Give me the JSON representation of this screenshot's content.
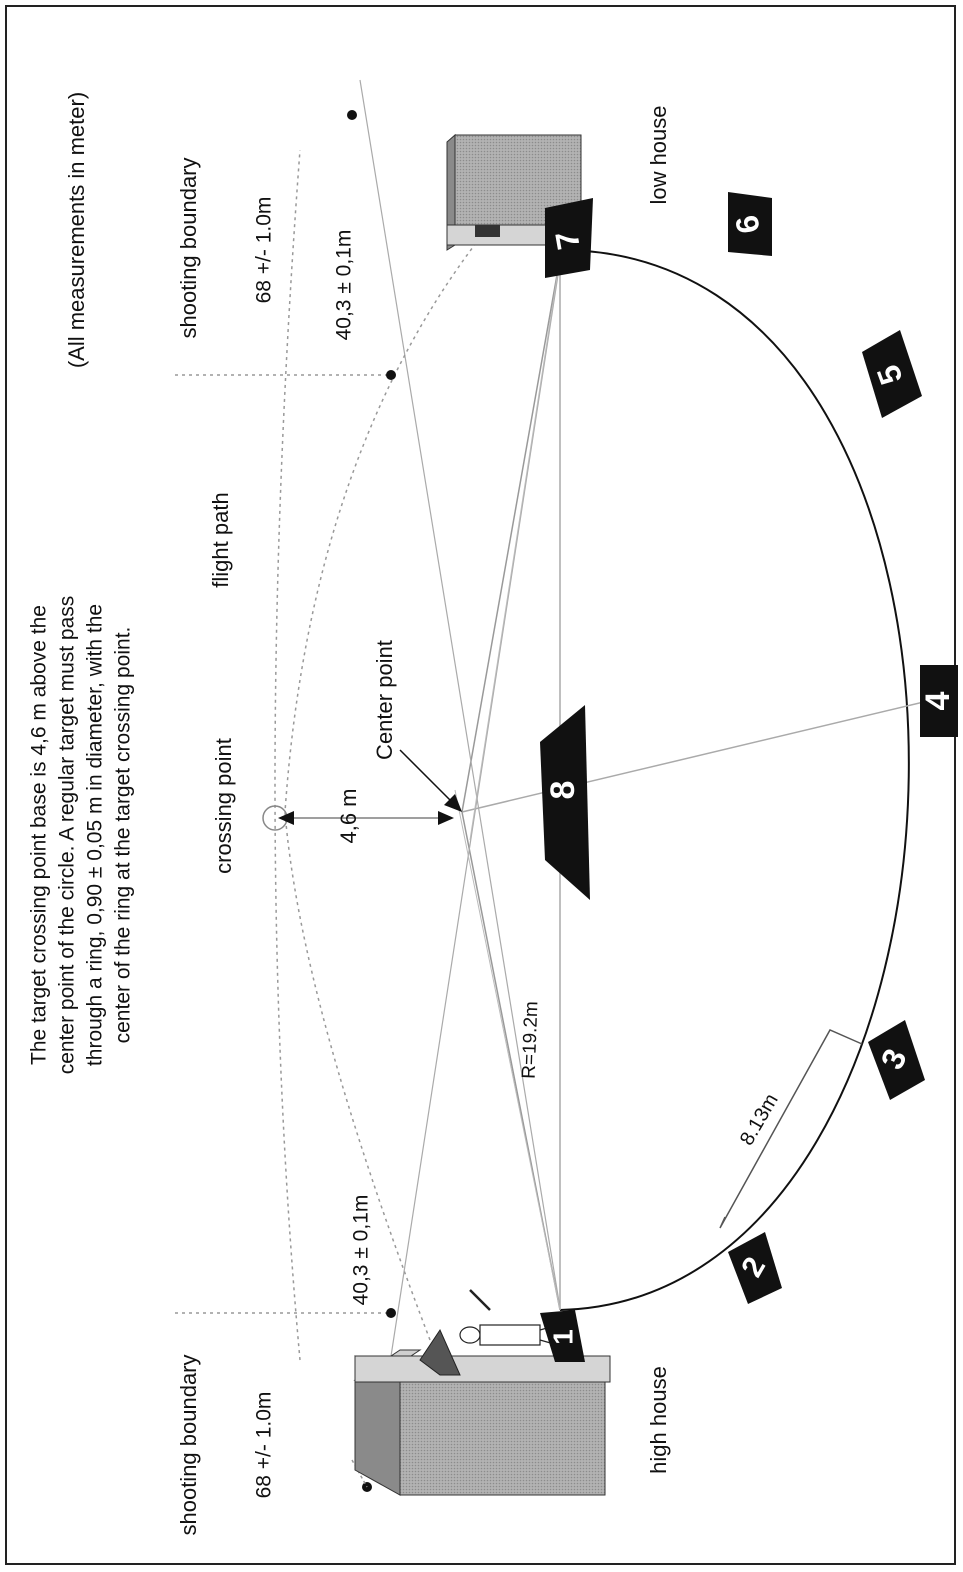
{
  "note": "(All measurements in meter)",
  "description": [
    "The target crossing point base is 4,6 m above the",
    "center point of the circle. A regular target must pass",
    "through a ring, 0,90 ± 0,05 m in diameter, with the",
    "center of the ring at the target crossing point."
  ],
  "labels": {
    "shooting_boundary_top": "shooting  boundary",
    "shooting_boundary_bottom": "shooting  boundary",
    "distance_68_top": "68 +/- 1.0m",
    "distance_68_bottom": "68 +/- 1.0m",
    "distance_40_top": "40,3  ±  0,1m",
    "distance_40_bottom": "40,3  ±  0,1m",
    "flight_path": "flight path",
    "crossing_point": "crossing point",
    "height": "4,6  m",
    "center_point": "Center point",
    "radius": "R=19.2m",
    "chord": "8.13m",
    "high_house": "high  house",
    "low_house": "low  house"
  },
  "stations": [
    "1",
    "2",
    "3",
    "4",
    "5",
    "6",
    "7",
    "8"
  ],
  "colors": {
    "ink": "#111111",
    "guide": "#999999",
    "house_side": "#8a8a8a",
    "house_front": "#a9a9a9",
    "house_top": "#cfcfcf"
  }
}
